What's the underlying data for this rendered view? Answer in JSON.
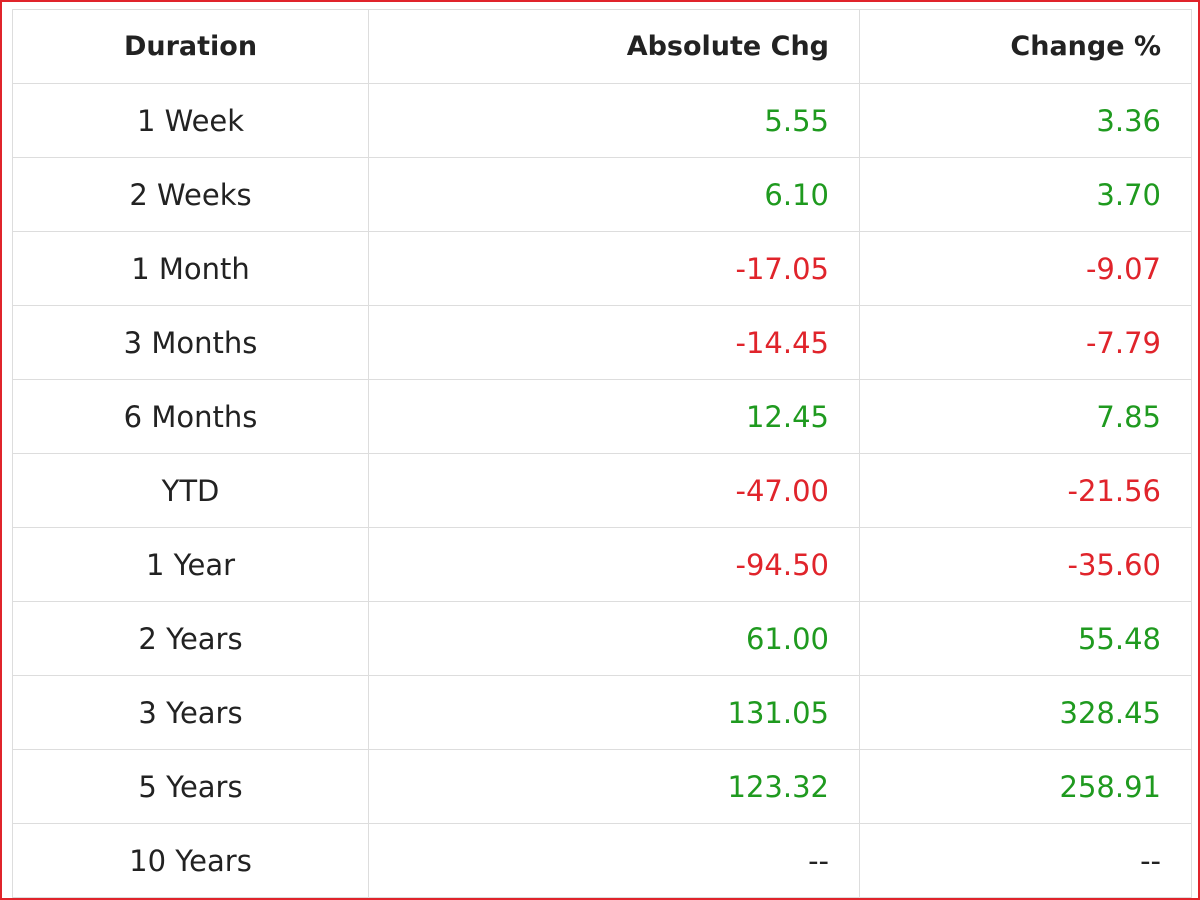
{
  "table": {
    "header": [
      "Duration",
      "Absolute Chg",
      "Change %"
    ],
    "rows": [
      [
        "1 Week",
        "5.55",
        "3.36"
      ],
      [
        "2 Weeks",
        "6.10",
        "3.70"
      ],
      [
        "1 Month",
        "-17.05",
        "-9.07"
      ],
      [
        "3 Months",
        "-14.45",
        "-7.79"
      ],
      [
        "6 Months",
        "12.45",
        "7.85"
      ],
      [
        "YTD",
        "-47.00",
        "-21.56"
      ],
      [
        "1 Year",
        "-94.50",
        "-35.60"
      ],
      [
        "2 Years",
        "61.00",
        "55.48"
      ],
      [
        "3 Years",
        "131.05",
        "328.45"
      ],
      [
        "5 Years",
        "123.32",
        "258.91"
      ],
      [
        "10 Years",
        "--",
        "--"
      ]
    ]
  }
}
